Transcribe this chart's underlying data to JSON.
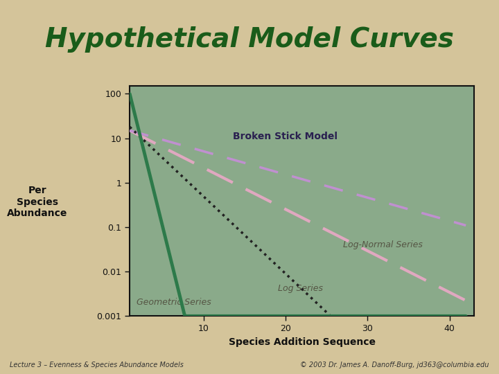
{
  "title": "Hypothetical Model Curves",
  "title_color": "#1a5c1a",
  "title_fontsize": 28,
  "xlabel": "Species Addition Sequence",
  "ylabel": "Per\nSpecies\nAbundance",
  "background_color": "#d4c49a",
  "plot_bg_color": "#8aaa8a",
  "xlim": [
    1,
    43
  ],
  "xticks": [
    10,
    20,
    30,
    40
  ],
  "ytick_labels": [
    "100",
    "10",
    "1",
    "0.1",
    "0.01",
    "0.001"
  ],
  "ytick_vals": [
    100,
    10,
    1,
    0.1,
    0.01,
    0.001
  ],
  "footer_left": "Lecture 3 – Evenness & Species Abundance Models",
  "footer_right": "© 2003 Dr. James A. Danoff-Burg, jd363@columbia.edu",
  "lavender_bar_color": "#b0a8d8",
  "geometric_color": "#2d7a4a",
  "log_normal_color": "#e0a8c0",
  "log_series_color": "#222222",
  "broken_stick_color": "#c090d0",
  "annotation_color": "#555544",
  "broken_stick_label_color": "#333366"
}
